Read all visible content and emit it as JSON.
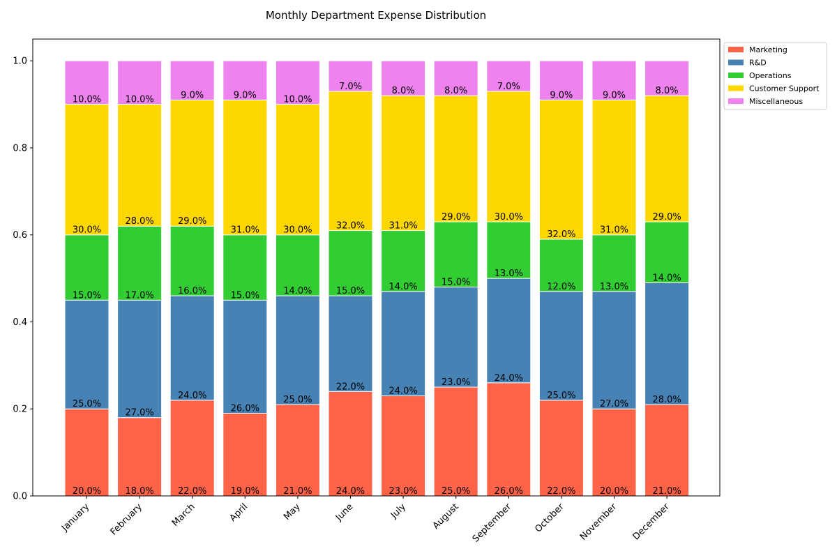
{
  "chart_data": {
    "type": "bar",
    "stacked": true,
    "title": "Monthly Department Expense Distribution",
    "xlabel": "",
    "ylabel": "",
    "ylim": [
      0,
      1.05
    ],
    "yticks": [
      "0.0",
      "0.2",
      "0.4",
      "0.6",
      "0.8",
      "1.0"
    ],
    "categories": [
      "January",
      "February",
      "March",
      "April",
      "May",
      "June",
      "July",
      "August",
      "September",
      "October",
      "November",
      "December"
    ],
    "series": [
      {
        "name": "Marketing",
        "color": "#ff6347",
        "values": [
          0.2,
          0.18,
          0.22,
          0.19,
          0.21,
          0.24,
          0.23,
          0.25,
          0.26,
          0.22,
          0.2,
          0.21
        ],
        "labels": [
          "20.0%",
          "18.0%",
          "22.0%",
          "19.0%",
          "21.0%",
          "24.0%",
          "23.0%",
          "25.0%",
          "26.0%",
          "22.0%",
          "20.0%",
          "21.0%"
        ]
      },
      {
        "name": "R&D",
        "color": "#4682b4",
        "values": [
          0.25,
          0.27,
          0.24,
          0.26,
          0.25,
          0.22,
          0.24,
          0.23,
          0.24,
          0.25,
          0.27,
          0.28
        ],
        "labels": [
          "25.0%",
          "27.0%",
          "24.0%",
          "26.0%",
          "25.0%",
          "22.0%",
          "24.0%",
          "23.0%",
          "24.0%",
          "25.0%",
          "27.0%",
          "28.0%"
        ]
      },
      {
        "name": "Operations",
        "color": "#32cd32",
        "values": [
          0.15,
          0.17,
          0.16,
          0.15,
          0.14,
          0.15,
          0.14,
          0.15,
          0.13,
          0.12,
          0.13,
          0.14
        ],
        "labels": [
          "15.0%",
          "17.0%",
          "16.0%",
          "15.0%",
          "14.0%",
          "15.0%",
          "14.0%",
          "15.0%",
          "13.0%",
          "12.0%",
          "13.0%",
          "14.0%"
        ]
      },
      {
        "name": "Customer Support",
        "color": "#ffd700",
        "values": [
          0.3,
          0.28,
          0.29,
          0.31,
          0.3,
          0.32,
          0.31,
          0.29,
          0.3,
          0.32,
          0.31,
          0.29
        ],
        "labels": [
          "30.0%",
          "28.0%",
          "29.0%",
          "31.0%",
          "30.0%",
          "32.0%",
          "31.0%",
          "29.0%",
          "30.0%",
          "32.0%",
          "31.0%",
          "29.0%"
        ]
      },
      {
        "name": "Miscellaneous",
        "color": "#ee82ee",
        "values": [
          0.1,
          0.1,
          0.09,
          0.09,
          0.1,
          0.07,
          0.08,
          0.08,
          0.07,
          0.09,
          0.09,
          0.08
        ],
        "labels": [
          "10.0%",
          "10.0%",
          "9.0%",
          "9.0%",
          "10.0%",
          "7.0%",
          "8.0%",
          "8.0%",
          "7.0%",
          "9.0%",
          "9.0%",
          "8.0%"
        ]
      }
    ],
    "grid": false,
    "legend_position": "outside-top-right"
  }
}
